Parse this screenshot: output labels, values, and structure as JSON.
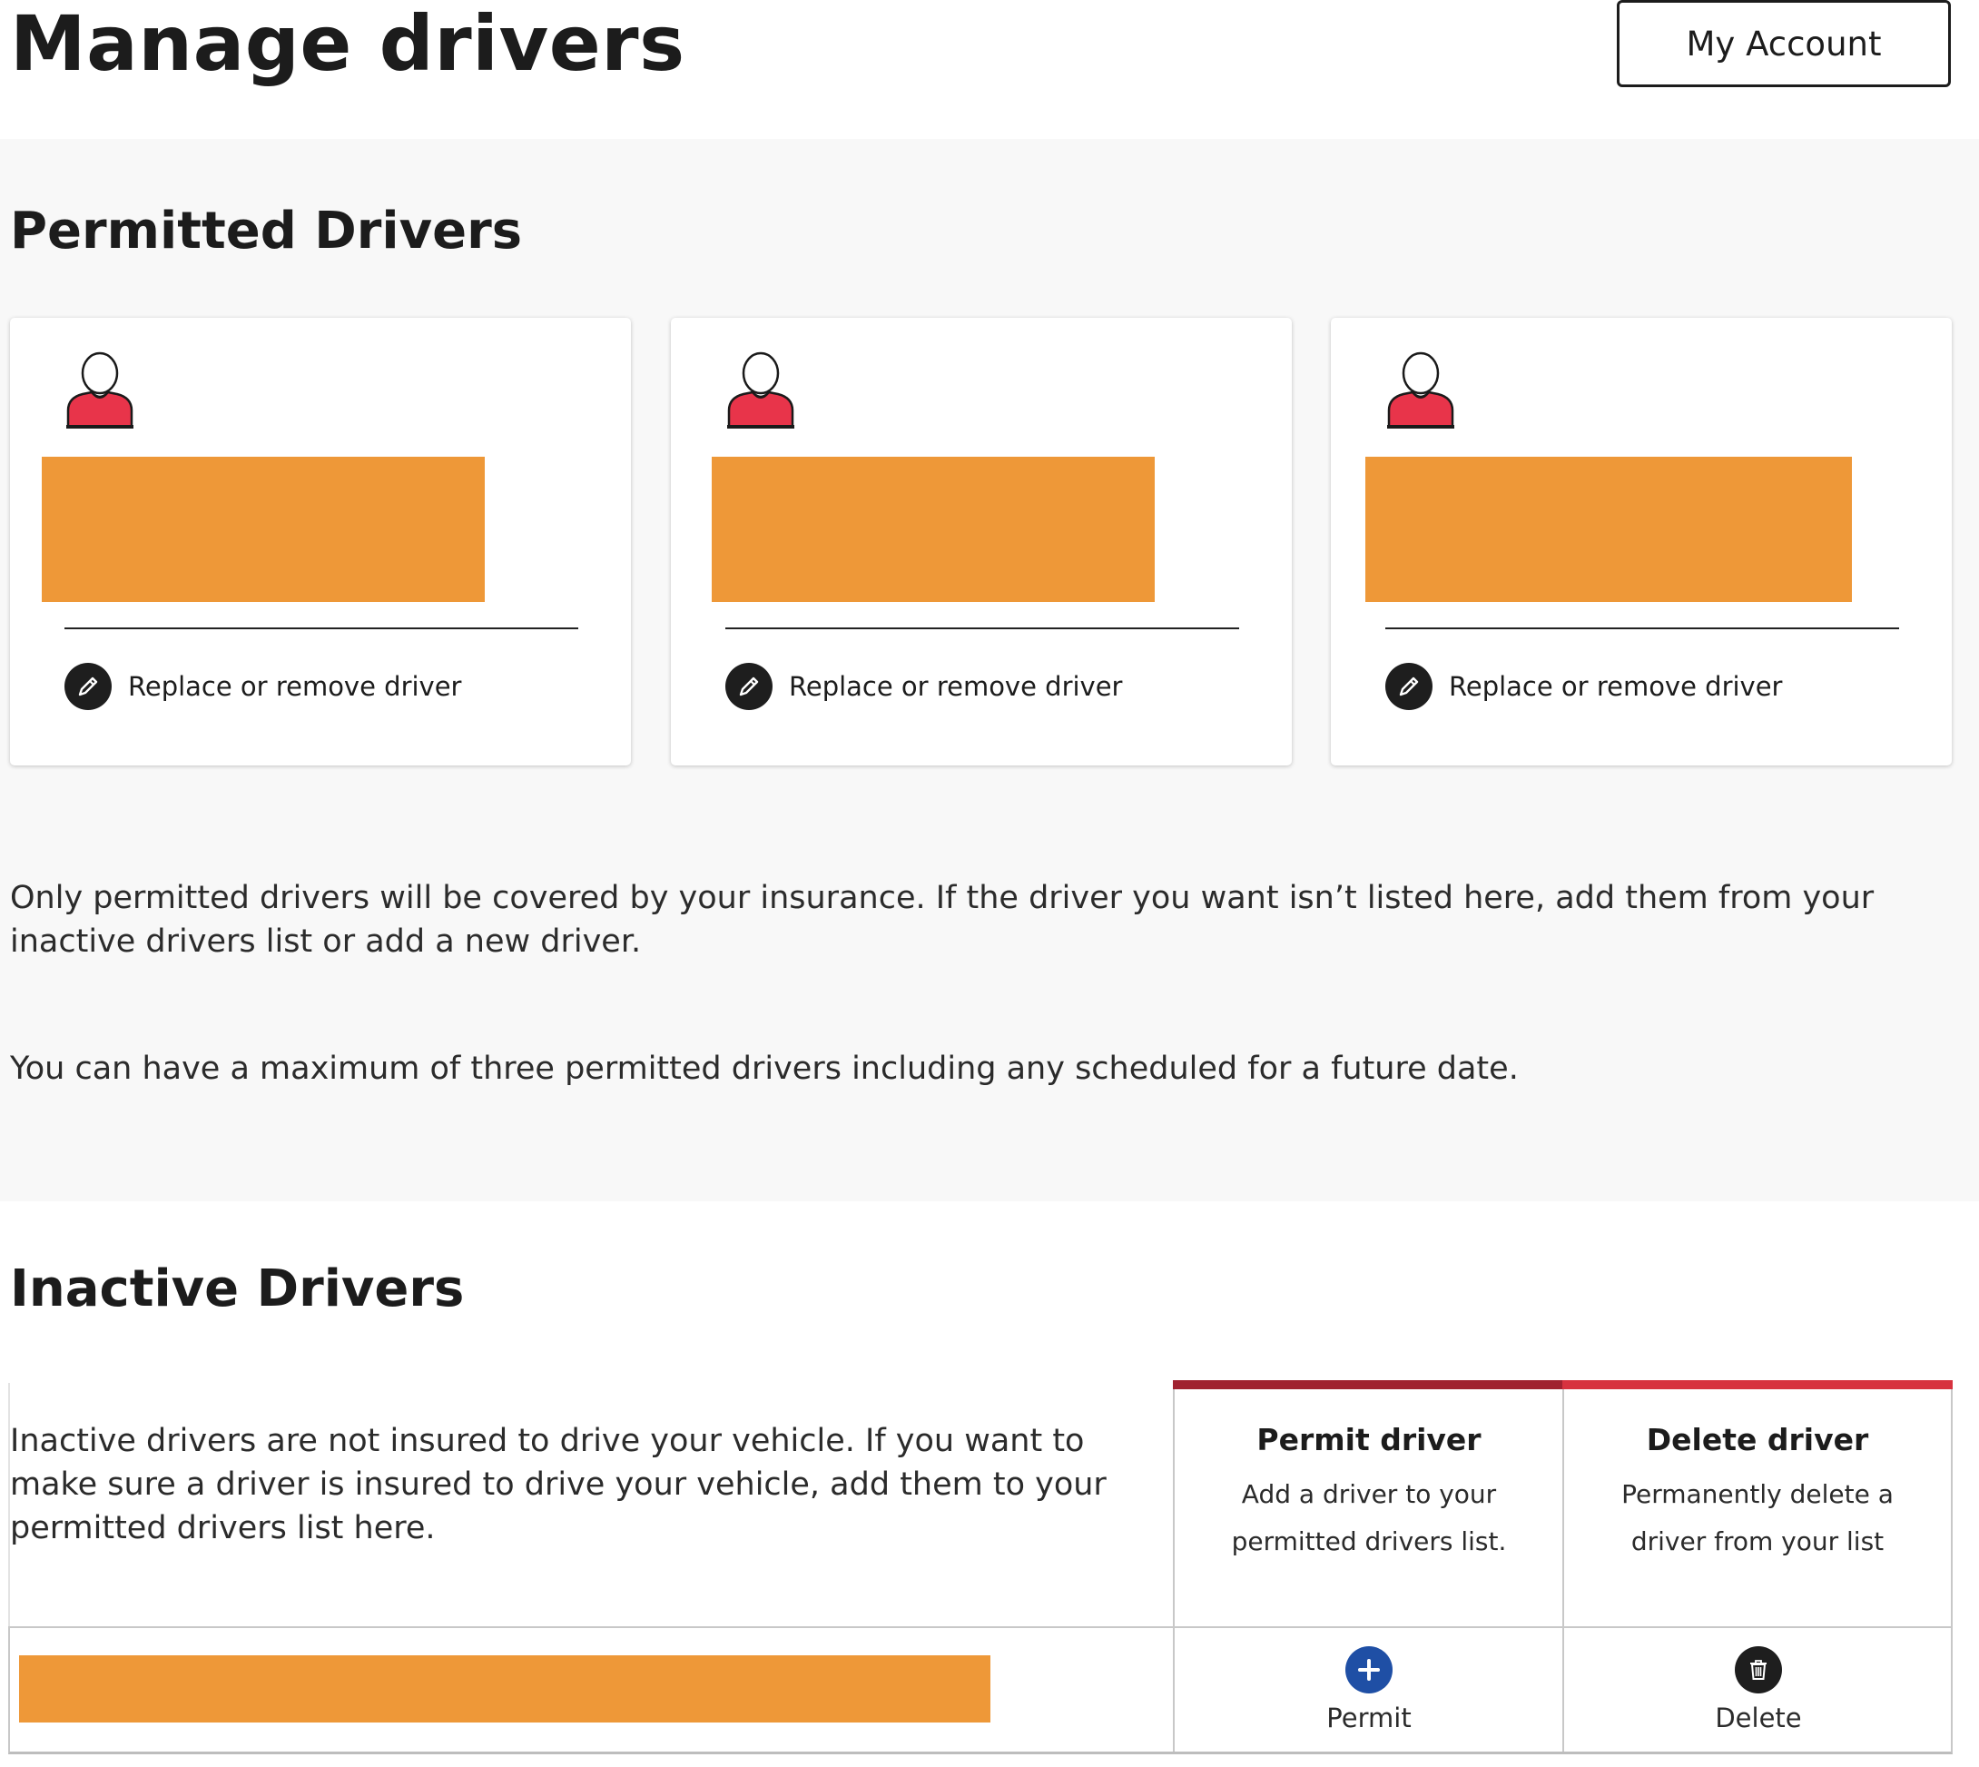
{
  "header": {
    "title": "Manage drivers",
    "account_button": "My Account"
  },
  "permitted": {
    "title": "Permitted Drivers",
    "cards": [
      {
        "action_label": "Replace or remove driver"
      },
      {
        "action_label": "Replace or remove driver"
      },
      {
        "action_label": "Replace or remove driver"
      }
    ],
    "info_1": "Only permitted drivers will be covered by your insurance. If the driver you want isn’t listed here, add them from your inactive drivers list or add a new driver.",
    "info_2": "You can have a maximum of three permitted drivers including any scheduled for a future date."
  },
  "inactive": {
    "title": "Inactive Drivers",
    "description": "Inactive drivers are not insured to drive your vehicle. If you want to make sure a driver is insured to drive your vehicle, add them to your permitted drivers list here.",
    "permit_option": {
      "title": "Permit driver",
      "description": "Add a driver to your permitted drivers list."
    },
    "delete_option": {
      "title": "Delete driver",
      "description": "Permanently delete a driver from your list"
    },
    "row": {
      "permit_label": "Permit",
      "delete_label": "Delete"
    }
  },
  "icons": {
    "avatar": "person-avatar-icon",
    "edit": "pencil-icon",
    "permit": "plus-circle-icon",
    "delete": "trash-icon"
  },
  "colors": {
    "redacted_block": "#ee9838",
    "avatar_shirt": "#e8344a",
    "permit_accent": "#a02230",
    "delete_accent": "#d7323f",
    "permit_icon": "#1f4fa5",
    "dark": "#1e1e1e",
    "section_bg": "#f8f8f8"
  }
}
